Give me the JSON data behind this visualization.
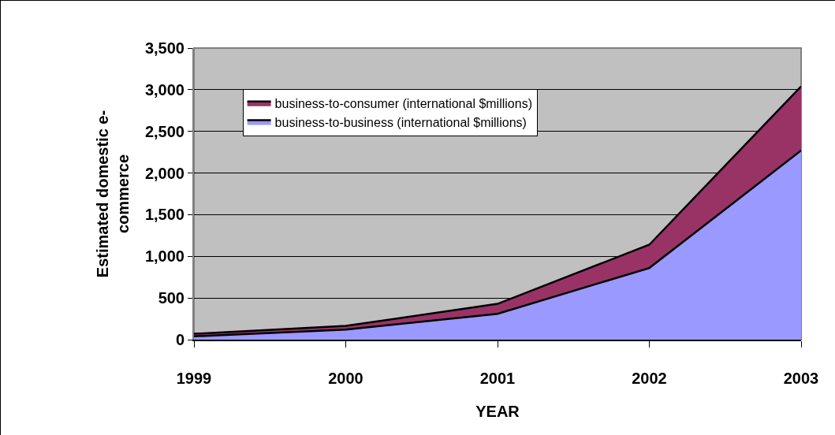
{
  "chart_data": {
    "type": "area",
    "stacked": true,
    "xlabel": "YEAR",
    "ylabel": "Estimated domestic e-commerce",
    "categories": [
      "1999",
      "2000",
      "2001",
      "2002",
      "2003"
    ],
    "series": [
      {
        "name": "business-to-business (international $millions)",
        "color": "#9999ff",
        "values": [
          40,
          120,
          310,
          860,
          2270
        ]
      },
      {
        "name": "business-to-consumer (international $millions)",
        "color": "#993366",
        "values": [
          30,
          45,
          120,
          280,
          770
        ]
      }
    ],
    "ylim": [
      0,
      3500
    ],
    "yticks": [
      0,
      500,
      {
        "value": 1000,
        "label": "1,000"
      },
      {
        "value": 1500,
        "label": "1,500"
      },
      {
        "value": 2000,
        "label": "2,000"
      },
      {
        "value": 2500,
        "label": "2,500"
      },
      {
        "value": 3000,
        "label": "3,000"
      },
      {
        "value": 3500,
        "label": "3,500"
      }
    ],
    "grid": "y",
    "legend": "top left"
  }
}
